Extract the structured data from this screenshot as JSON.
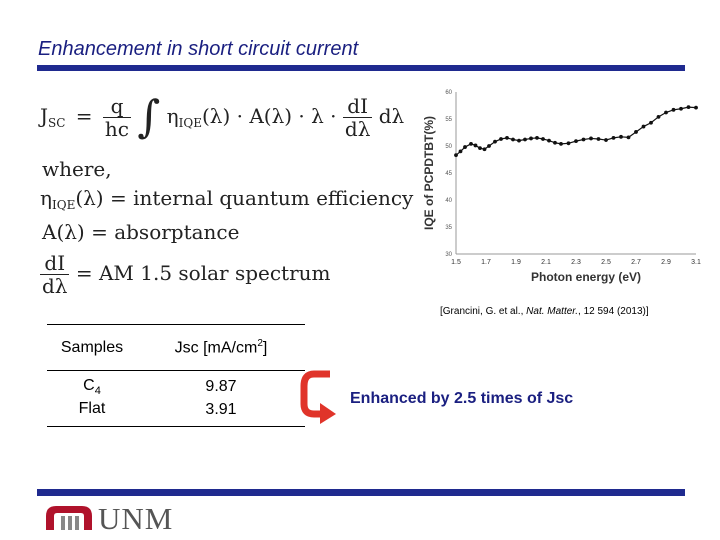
{
  "slide": {
    "title": "Enhancement in short circuit current"
  },
  "equation": {
    "lhs_main": "J",
    "lhs_sub": "SC",
    "eq": "=",
    "frac1_num": "q",
    "frac1_den": "hc",
    "integral": "∫",
    "eta": "η",
    "eta_sub": "IQE",
    "mid": "(λ) · A(λ) · λ ·",
    "frac2_num": "dI",
    "frac2_den": "dλ",
    "dlambda": "dλ",
    "where": "where,",
    "iqe_main": "η",
    "iqe_sub": "IQE",
    "iqe_rest": "(λ) = internal quantum efficiency",
    "abs_line": "A(λ) = absorptance",
    "am_num": "dI",
    "am_den": "dλ",
    "am_rest": "= AM 1.5 solar spectrum"
  },
  "chart_data": {
    "type": "line",
    "xlabel": "Photon energy (eV)",
    "ylabel": "IQE of PCPDTBT(%)",
    "xlim": [
      1.5,
      3.1
    ],
    "ylim": [
      30,
      60
    ],
    "x_ticks": [
      "1.5",
      "1.7",
      "1.9",
      "2.1",
      "2.3",
      "2.5",
      "2.7",
      "2.9",
      "3.1"
    ],
    "y_ticks": [
      "30",
      "35",
      "40",
      "45",
      "50",
      "55",
      "60"
    ],
    "grid": false,
    "x": [
      1.5,
      1.53,
      1.56,
      1.6,
      1.63,
      1.66,
      1.69,
      1.72,
      1.76,
      1.8,
      1.84,
      1.88,
      1.92,
      1.96,
      2.0,
      2.04,
      2.08,
      2.12,
      2.16,
      2.2,
      2.25,
      2.3,
      2.35,
      2.4,
      2.45,
      2.5,
      2.55,
      2.6,
      2.65,
      2.7,
      2.75,
      2.8,
      2.85,
      2.9,
      2.95,
      3.0,
      3.05,
      3.1
    ],
    "values": [
      48.3,
      49.0,
      49.8,
      50.4,
      50.1,
      49.6,
      49.4,
      50.0,
      50.8,
      51.3,
      51.5,
      51.2,
      51.0,
      51.2,
      51.4,
      51.5,
      51.3,
      51.0,
      50.6,
      50.4,
      50.5,
      50.9,
      51.2,
      51.4,
      51.3,
      51.1,
      51.5,
      51.7,
      51.6,
      52.6,
      53.6,
      54.3,
      55.4,
      56.2,
      56.7,
      56.9,
      57.2,
      57.1
    ],
    "color": "#111111"
  },
  "citation": {
    "prefix": "[Grancini, G. et al., ",
    "journal": "Nat. Matter.",
    "suffix": ", 12 594 (2013)]"
  },
  "table": {
    "header_samples": "Samples",
    "header_jsc": "Jsc [mA/cm",
    "header_jsc_sup": "2",
    "header_jsc_end": "]",
    "rows": [
      {
        "sample_main": "C",
        "sample_sub": "4",
        "jsc": "9.87"
      },
      {
        "sample_main": "Flat",
        "sample_sub": "",
        "jsc": "3.91"
      }
    ]
  },
  "callout": {
    "text": "Enhanced by 2.5 times of Jsc",
    "arrow_color": "#e0342a"
  },
  "logo": {
    "text": "UNM",
    "mark_color": "#b0122b"
  }
}
